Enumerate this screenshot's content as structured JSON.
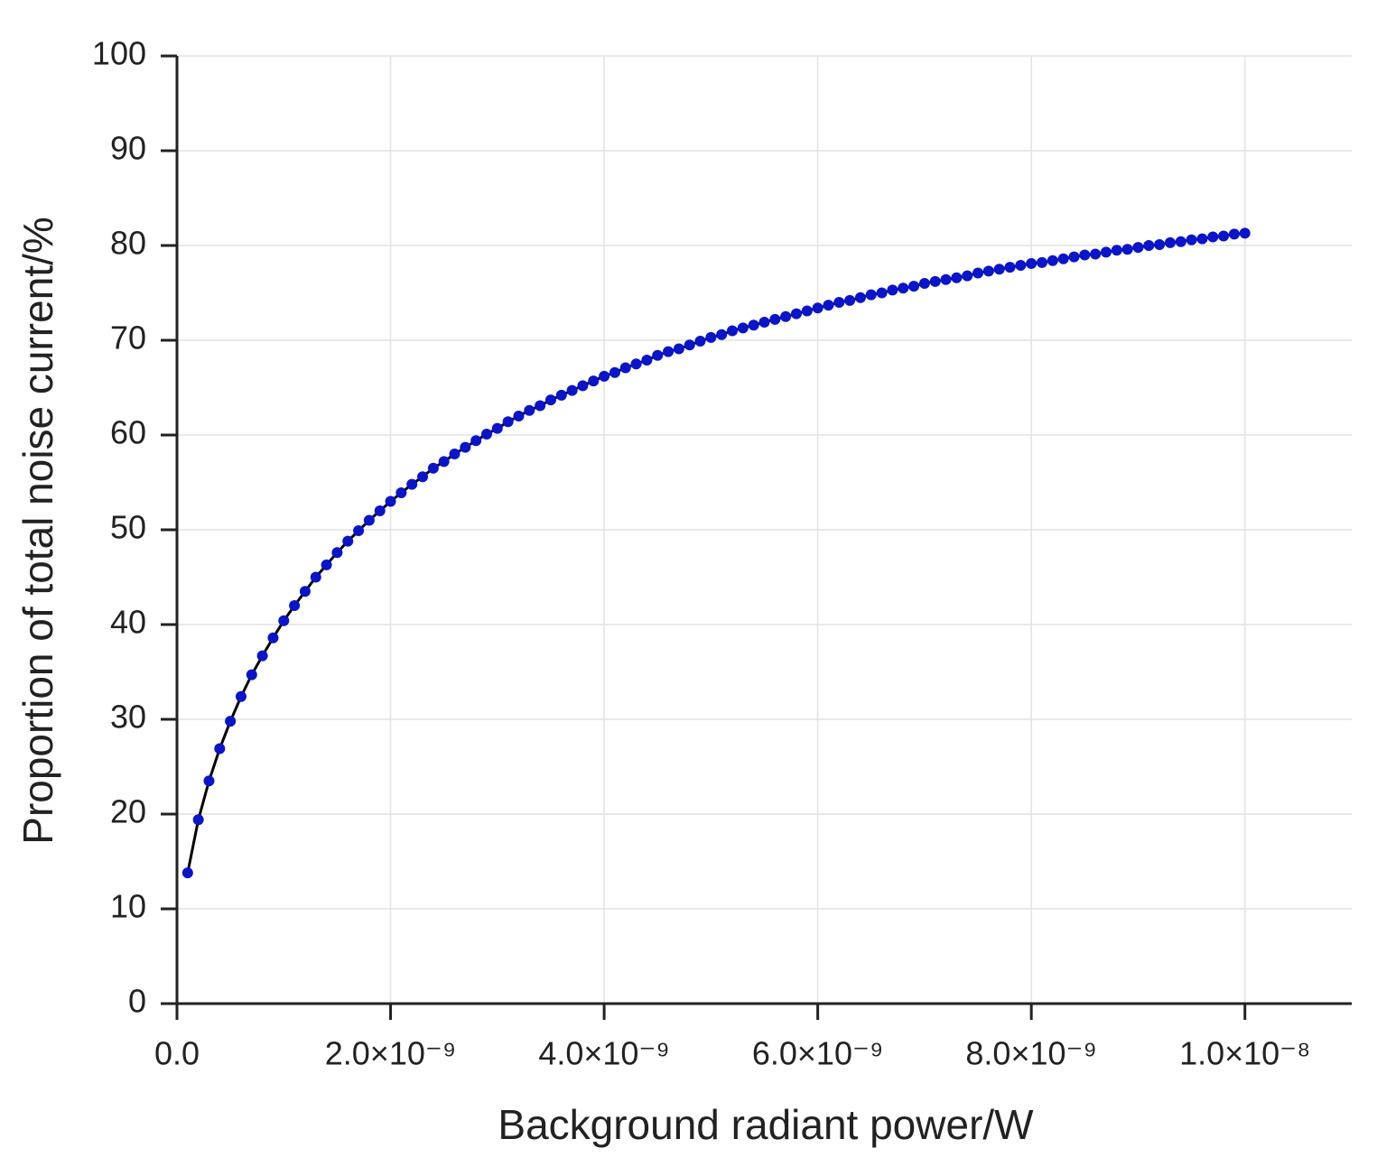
{
  "chart_data": {
    "type": "line",
    "x_label": "Background radiant power/W",
    "y_label": "Proportion of total noise current/%",
    "x": [
      1e-10,
      2e-10,
      3e-10,
      4e-10,
      5e-10,
      6e-10,
      7e-10,
      8e-10,
      9e-10,
      1e-09,
      1.1e-09,
      1.2e-09,
      1.3e-09,
      1.4e-09,
      1.5e-09,
      1.6e-09,
      1.7e-09,
      1.8e-09,
      1.9e-09,
      2e-09,
      2.1e-09,
      2.2e-09,
      2.3e-09,
      2.4e-09,
      2.5e-09,
      2.6e-09,
      2.7e-09,
      2.8e-09,
      2.9e-09,
      3e-09,
      3.1e-09,
      3.2e-09,
      3.3e-09,
      3.4e-09,
      3.5e-09,
      3.6e-09,
      3.7e-09,
      3.8e-09,
      3.9e-09,
      4e-09,
      4.1e-09,
      4.2e-09,
      4.3e-09,
      4.4e-09,
      4.5e-09,
      4.6e-09,
      4.7e-09,
      4.8e-09,
      4.9e-09,
      5e-09,
      5.1e-09,
      5.2e-09,
      5.3e-09,
      5.4e-09,
      5.5e-09,
      5.6e-09,
      5.7e-09,
      5.8e-09,
      5.9e-09,
      6e-09,
      6.1e-09,
      6.2e-09,
      6.3e-09,
      6.4e-09,
      6.5e-09,
      6.6e-09,
      6.7e-09,
      6.8e-09,
      6.9e-09,
      7e-09,
      7.1e-09,
      7.2e-09,
      7.3e-09,
      7.4e-09,
      7.5e-09,
      7.6e-09,
      7.7e-09,
      7.8e-09,
      7.9e-09,
      8e-09,
      8.1e-09,
      8.2e-09,
      8.3e-09,
      8.4e-09,
      8.5e-09,
      8.6e-09,
      8.7e-09,
      8.8e-09,
      8.9e-09,
      9e-09,
      9.1e-09,
      9.2e-09,
      9.3e-09,
      9.4e-09,
      9.5e-09,
      9.6e-09,
      9.7e-09,
      9.8e-09,
      9.9e-09,
      1e-08
    ],
    "values": [
      13.8,
      19.4,
      23.5,
      26.9,
      29.8,
      32.4,
      34.7,
      36.7,
      38.6,
      40.4,
      42.0,
      43.5,
      45.0,
      46.3,
      47.6,
      48.8,
      49.9,
      51.0,
      52.0,
      53.0,
      53.9,
      54.8,
      55.6,
      56.5,
      57.2,
      58.0,
      58.7,
      59.4,
      60.1,
      60.7,
      61.4,
      62.0,
      62.6,
      63.1,
      63.7,
      64.2,
      64.7,
      65.2,
      65.7,
      66.2,
      66.6,
      67.1,
      67.5,
      67.9,
      68.4,
      68.8,
      69.1,
      69.5,
      69.9,
      70.3,
      70.6,
      71.0,
      71.3,
      71.6,
      71.9,
      72.2,
      72.5,
      72.8,
      73.1,
      73.4,
      73.7,
      74.0,
      74.2,
      74.5,
      74.8,
      75.0,
      75.3,
      75.5,
      75.7,
      76.0,
      76.2,
      76.4,
      76.6,
      76.8,
      77.1,
      77.3,
      77.5,
      77.7,
      77.9,
      78.1,
      78.2,
      78.4,
      78.6,
      78.8,
      79.0,
      79.1,
      79.3,
      79.5,
      79.6,
      79.8,
      80.0,
      80.1,
      80.3,
      80.4,
      80.6,
      80.7,
      80.9,
      81.0,
      81.2,
      81.3
    ],
    "color": "#0a14c8",
    "line_color": "#000000",
    "xlim": [
      0,
      1.1e-08
    ],
    "xticks": [
      {
        "value": 0,
        "label": "0.0"
      },
      {
        "value": 2e-09,
        "label": "2.0×10⁻⁹"
      },
      {
        "value": 4e-09,
        "label": "4.0×10⁻⁹"
      },
      {
        "value": 6e-09,
        "label": "6.0×10⁻⁹"
      },
      {
        "value": 8e-09,
        "label": "8.0×10⁻⁹"
      },
      {
        "value": 1e-08,
        "label": "1.0×10⁻⁸"
      }
    ],
    "ylim": [
      0,
      100
    ],
    "yticks": [
      0,
      10,
      20,
      30,
      40,
      50,
      60,
      70,
      80,
      90,
      100
    ],
    "grid": true
  }
}
